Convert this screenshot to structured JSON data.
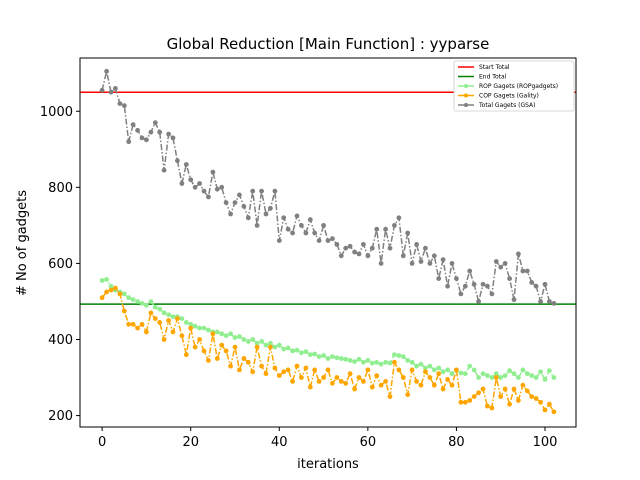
{
  "chart_data": {
    "type": "line",
    "title": "Global Reduction [Main Function] : yyparse",
    "xlabel": "iterations",
    "ylabel": "# No of gadgets",
    "xlim": [
      -5,
      107
    ],
    "ylim": [
      170,
      1140
    ],
    "xticks": [
      0,
      20,
      40,
      60,
      80,
      100
    ],
    "yticks": [
      200,
      400,
      600,
      800,
      1000
    ],
    "grid": false,
    "legend_position": "top-right",
    "hlines": [
      {
        "name": "Start Total",
        "value": 1050,
        "color": "#ff0000"
      },
      {
        "name": "End Total",
        "value": 493,
        "color": "#008000"
      }
    ],
    "series": [
      {
        "name": "ROP Gagets (ROPgadgets)",
        "color": "#90ee90",
        "x": [
          0,
          1,
          2,
          3,
          4,
          5,
          6,
          7,
          8,
          9,
          10,
          11,
          12,
          13,
          14,
          15,
          16,
          17,
          18,
          19,
          20,
          21,
          22,
          23,
          24,
          25,
          26,
          27,
          28,
          29,
          30,
          31,
          32,
          33,
          34,
          35,
          36,
          37,
          38,
          39,
          40,
          41,
          42,
          43,
          44,
          45,
          46,
          47,
          48,
          49,
          50,
          51,
          52,
          53,
          54,
          55,
          56,
          57,
          58,
          59,
          60,
          61,
          62,
          63,
          64,
          65,
          66,
          67,
          68,
          69,
          70,
          71,
          72,
          73,
          74,
          75,
          76,
          77,
          78,
          79,
          80,
          81,
          82,
          83,
          84,
          85,
          86,
          87,
          88,
          89,
          90,
          91,
          92,
          93,
          94,
          95,
          96,
          97,
          98,
          99,
          100,
          101,
          102
        ],
        "values": [
          555,
          558,
          540,
          530,
          525,
          520,
          510,
          505,
          500,
          495,
          490,
          500,
          485,
          480,
          470,
          465,
          460,
          460,
          455,
          445,
          440,
          435,
          430,
          430,
          425,
          420,
          420,
          415,
          410,
          415,
          405,
          408,
          400,
          395,
          400,
          390,
          395,
          385,
          390,
          380,
          385,
          375,
          378,
          370,
          372,
          365,
          368,
          360,
          362,
          355,
          358,
          350,
          355,
          352,
          350,
          348,
          345,
          342,
          348,
          340,
          345,
          338,
          340,
          335,
          340,
          338,
          360,
          358,
          355,
          345,
          340,
          330,
          335,
          325,
          330,
          320,
          325,
          315,
          320,
          310,
          320,
          312,
          310,
          330,
          320,
          300,
          310,
          305,
          300,
          310,
          300,
          305,
          318,
          310,
          300,
          320,
          310,
          305,
          300,
          315,
          295,
          318,
          300
        ]
      },
      {
        "name": "COP Gagets (Gality)",
        "color": "#ffa500",
        "x": [
          0,
          1,
          2,
          3,
          4,
          5,
          6,
          7,
          8,
          9,
          10,
          11,
          12,
          13,
          14,
          15,
          16,
          17,
          18,
          19,
          20,
          21,
          22,
          23,
          24,
          25,
          26,
          27,
          28,
          29,
          30,
          31,
          32,
          33,
          34,
          35,
          36,
          37,
          38,
          39,
          40,
          41,
          42,
          43,
          44,
          45,
          46,
          47,
          48,
          49,
          50,
          51,
          52,
          53,
          54,
          55,
          56,
          57,
          58,
          59,
          60,
          61,
          62,
          63,
          64,
          65,
          66,
          67,
          68,
          69,
          70,
          71,
          72,
          73,
          74,
          75,
          76,
          77,
          78,
          79,
          80,
          81,
          82,
          83,
          84,
          85,
          86,
          87,
          88,
          89,
          90,
          91,
          92,
          93,
          94,
          95,
          96,
          97,
          98,
          99,
          100,
          101,
          102
        ],
        "values": [
          510,
          525,
          530,
          535,
          520,
          475,
          440,
          440,
          430,
          440,
          420,
          470,
          455,
          445,
          400,
          450,
          420,
          455,
          410,
          360,
          430,
          380,
          400,
          370,
          345,
          415,
          350,
          385,
          370,
          330,
          380,
          320,
          350,
          340,
          315,
          380,
          330,
          310,
          380,
          325,
          305,
          315,
          320,
          290,
          330,
          300,
          325,
          275,
          320,
          290,
          300,
          320,
          285,
          300,
          290,
          285,
          310,
          270,
          300,
          290,
          320,
          275,
          305,
          280,
          290,
          250,
          340,
          320,
          300,
          255,
          320,
          290,
          280,
          315,
          300,
          280,
          310,
          270,
          295,
          280,
          320,
          235,
          235,
          240,
          250,
          260,
          270,
          225,
          220,
          300,
          250,
          270,
          230,
          270,
          240,
          280,
          265,
          250,
          245,
          235,
          215,
          230,
          210
        ]
      },
      {
        "name": "Total Gagets (GSA)",
        "color": "#808080",
        "x": [
          0,
          1,
          2,
          3,
          4,
          5,
          6,
          7,
          8,
          9,
          10,
          11,
          12,
          13,
          14,
          15,
          16,
          17,
          18,
          19,
          20,
          21,
          22,
          23,
          24,
          25,
          26,
          27,
          28,
          29,
          30,
          31,
          32,
          33,
          34,
          35,
          36,
          37,
          38,
          39,
          40,
          41,
          42,
          43,
          44,
          45,
          46,
          47,
          48,
          49,
          50,
          51,
          52,
          53,
          54,
          55,
          56,
          57,
          58,
          59,
          60,
          61,
          62,
          63,
          64,
          65,
          66,
          67,
          68,
          69,
          70,
          71,
          72,
          73,
          74,
          75,
          76,
          77,
          78,
          79,
          80,
          81,
          82,
          83,
          84,
          85,
          86,
          87,
          88,
          89,
          90,
          91,
          92,
          93,
          94,
          95,
          96,
          97,
          98,
          99,
          100,
          101,
          102
        ],
        "values": [
          1055,
          1105,
          1050,
          1060,
          1020,
          1015,
          920,
          965,
          950,
          930,
          925,
          945,
          970,
          945,
          845,
          940,
          930,
          870,
          810,
          860,
          820,
          800,
          810,
          790,
          775,
          840,
          795,
          800,
          760,
          730,
          760,
          780,
          750,
          720,
          790,
          700,
          790,
          730,
          745,
          790,
          660,
          720,
          690,
          680,
          725,
          700,
          680,
          715,
          680,
          660,
          700,
          660,
          665,
          650,
          620,
          640,
          645,
          630,
          625,
          650,
          620,
          640,
          690,
          600,
          690,
          640,
          700,
          720,
          620,
          680,
          600,
          650,
          605,
          640,
          600,
          620,
          560,
          610,
          540,
          600,
          560,
          520,
          540,
          580,
          545,
          500,
          545,
          540,
          520,
          605,
          590,
          600,
          560,
          505,
          625,
          580,
          580,
          550,
          540,
          500,
          545,
          500,
          495
        ]
      }
    ]
  }
}
